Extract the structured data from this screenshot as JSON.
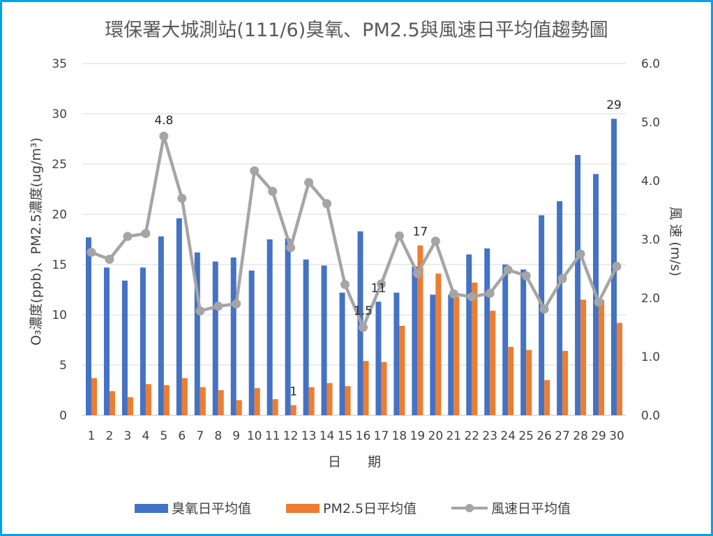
{
  "chart_data": {
    "type": "bar",
    "title": "環保署大城測站(111/6)臭氧、PM2.5與風速日平均值趨勢圖",
    "xlabel": "日　　期",
    "ylabel_left": "O₃濃度(ppb)、PM2.5濃度(ug/m³)",
    "ylabel_right": "風 速 (m/s)",
    "ylim_left": [
      0,
      35
    ],
    "ylim_right": [
      0.0,
      6.0
    ],
    "yticks_left": [
      "0",
      "5",
      "10",
      "15",
      "20",
      "25",
      "30",
      "35"
    ],
    "yticks_right": [
      "0.0",
      "1.0",
      "2.0",
      "3.0",
      "4.0",
      "5.0",
      "6.0"
    ],
    "grid": true,
    "legend_position": "bottom",
    "categories": [
      "1",
      "2",
      "3",
      "4",
      "5",
      "6",
      "7",
      "8",
      "9",
      "10",
      "11",
      "12",
      "13",
      "14",
      "15",
      "16",
      "17",
      "18",
      "19",
      "20",
      "21",
      "22",
      "23",
      "24",
      "25",
      "26",
      "27",
      "28",
      "29",
      "30"
    ],
    "series": [
      {
        "name": "臭氧日平均值",
        "type": "bar",
        "axis": "left",
        "color": "#4472c4",
        "values": [
          17.7,
          14.7,
          13.4,
          14.7,
          17.8,
          19.6,
          16.2,
          15.3,
          15.7,
          14.4,
          17.5,
          17.6,
          15.5,
          14.9,
          12.2,
          18.3,
          11.3,
          12.2,
          14.8,
          12.0,
          12.0,
          16.0,
          16.6,
          15.0,
          14.5,
          19.9,
          21.3,
          25.9,
          24.0,
          29.5
        ]
      },
      {
        "name": "PM2.5日平均值",
        "type": "bar",
        "axis": "left",
        "color": "#ed7d31",
        "values": [
          3.7,
          2.4,
          1.8,
          3.1,
          3.0,
          3.7,
          2.8,
          2.5,
          1.5,
          2.7,
          1.6,
          1.0,
          2.8,
          3.2,
          2.9,
          5.4,
          5.3,
          8.9,
          16.9,
          14.1,
          11.8,
          13.2,
          10.4,
          6.8,
          6.5,
          3.5,
          6.4,
          11.5,
          11.5,
          9.2
        ]
      },
      {
        "name": "風速日平均值",
        "type": "line",
        "axis": "right",
        "color": "#a5a5a5",
        "values": [
          2.78,
          2.66,
          3.05,
          3.1,
          4.76,
          3.7,
          1.78,
          1.86,
          1.9,
          4.17,
          3.82,
          2.86,
          3.97,
          3.61,
          2.23,
          1.5,
          2.24,
          3.06,
          2.42,
          2.97,
          2.07,
          2.02,
          2.08,
          2.48,
          2.38,
          1.81,
          2.33,
          2.75,
          1.93,
          2.54
        ]
      }
    ],
    "annotations": [
      {
        "text": "4.8",
        "series": "風速日平均值",
        "day": 5
      },
      {
        "text": "1",
        "series": "PM2.5日平均值",
        "day": 12
      },
      {
        "text": "1.5",
        "series": "風速日平均值",
        "day": 16
      },
      {
        "text": "11",
        "series": "臭氧日平均值",
        "day": 17
      },
      {
        "text": "17",
        "series": "PM2.5日平均值",
        "day": 19
      },
      {
        "text": "29",
        "series": "臭氧日平均值",
        "day": 30
      }
    ]
  }
}
